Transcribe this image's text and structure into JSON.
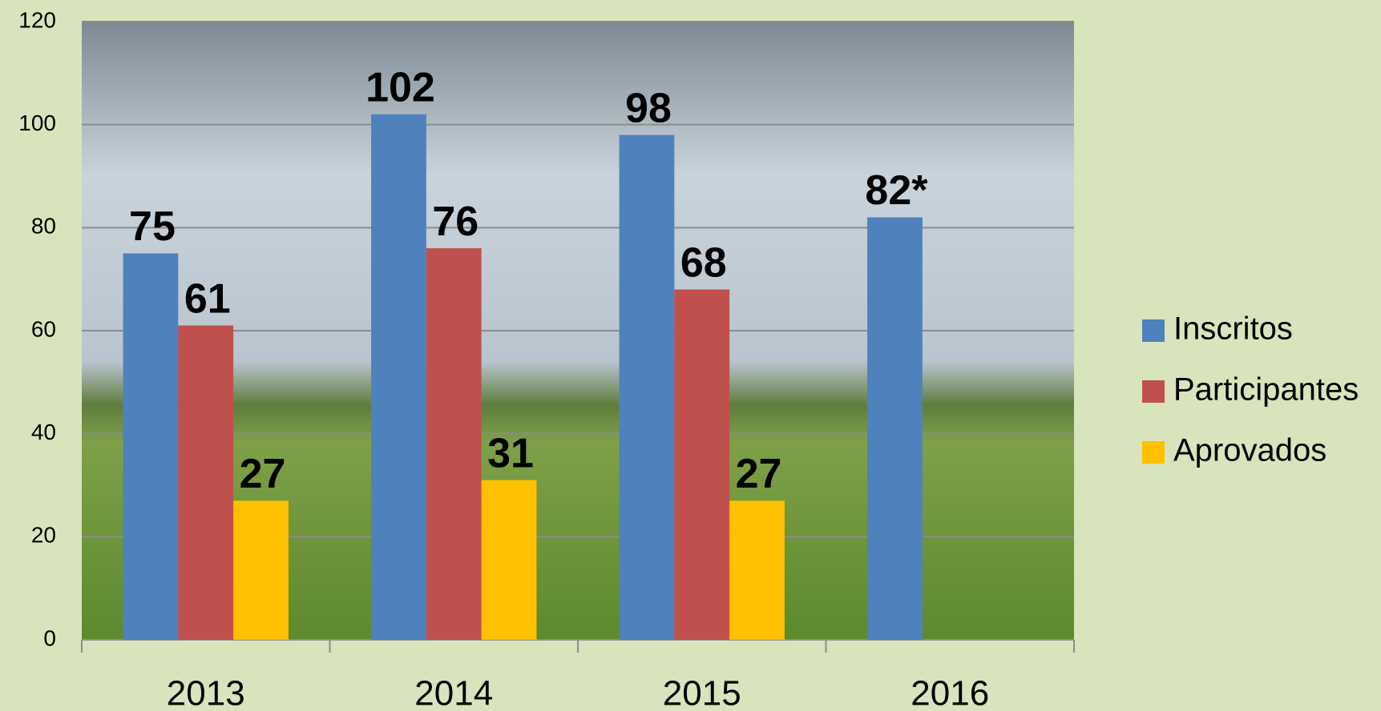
{
  "chart_data": {
    "type": "bar",
    "categories": [
      "2013",
      "2014",
      "2015",
      "2016"
    ],
    "series": [
      {
        "name": "Inscritos",
        "color": "#4f81bd",
        "values": [
          75,
          102,
          98,
          82
        ],
        "value_labels": [
          "75",
          "102",
          "98",
          "82*"
        ]
      },
      {
        "name": "Participantes",
        "color": "#c0504d",
        "values": [
          61,
          76,
          68,
          null
        ]
      },
      {
        "name": "Aprovados",
        "color": "#ffc000",
        "values": [
          27,
          31,
          27,
          null
        ]
      }
    ],
    "ylim": [
      0,
      120
    ],
    "yticks": [
      0,
      20,
      40,
      60,
      80,
      100,
      120
    ],
    "grid": true,
    "legend": "right"
  }
}
